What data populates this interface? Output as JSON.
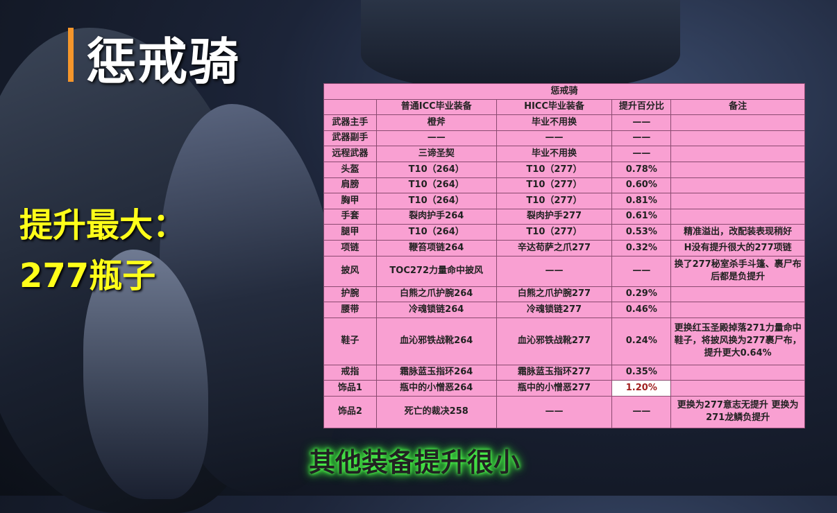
{
  "title": "惩戒骑",
  "highlight": {
    "line1": "提升最大：",
    "line2": "277瓶子"
  },
  "subtitle": "其他装备提升很小",
  "accent_bar_color": "#f5962b",
  "table": {
    "title": "惩戒骑",
    "headers": [
      "",
      "普通ICC毕业装备",
      "HICC毕业装备",
      "提升百分比",
      "备注"
    ],
    "rows": [
      [
        "武器主手",
        "橙斧",
        "毕业不用换",
        "——",
        ""
      ],
      [
        "武器副手",
        "——",
        "——",
        "——",
        ""
      ],
      [
        "远程武器",
        "三谛圣契",
        "毕业不用换",
        "——",
        ""
      ],
      [
        "头盔",
        "T10（264）",
        "T10（277）",
        "0.78%",
        ""
      ],
      [
        "肩膀",
        "T10（264）",
        "T10（277）",
        "0.60%",
        ""
      ],
      [
        "胸甲",
        "T10（264）",
        "T10（277）",
        "0.81%",
        ""
      ],
      [
        "手套",
        "裂肉护手264",
        "裂肉护手277",
        "0.61%",
        ""
      ],
      [
        "腿甲",
        "T10（264）",
        "T10（277）",
        "0.53%",
        "精准溢出，改配装表现稍好"
      ],
      [
        "项链",
        "鞭笞项链264",
        "辛达苟萨之爪277",
        "0.32%",
        "H没有提升很大的277项链"
      ],
      [
        "披风",
        "TOC272力量命中披风",
        "——",
        "——",
        "换了277秘室杀手斗篷、裹尸布后都是负提升"
      ],
      [
        "护腕",
        "白熊之爪护腕264",
        "白熊之爪护腕277",
        "0.29%",
        ""
      ],
      [
        "腰带",
        "冷魂锁链264",
        "冷魂锁链277",
        "0.46%",
        ""
      ],
      [
        "鞋子",
        "血沁邪铁战靴264",
        "血沁邪铁战靴277",
        "0.24%",
        "更换红玉圣殿掉落271力量命中鞋子，将披风换为277裹尸布，提升更大0.64%"
      ],
      [
        "戒指",
        "霜脉蓝玉指环264",
        "霜脉蓝玉指环277",
        "0.35%",
        ""
      ],
      [
        "饰品1",
        "瓶中的小憎恶264",
        "瓶中的小憎恶277",
        "1.20%",
        ""
      ],
      [
        "饰品2",
        "死亡的裁决258",
        "——",
        "——",
        "更换为277意志无提升 更换为271龙鳞负提升"
      ]
    ],
    "highlighted_row": 14
  }
}
